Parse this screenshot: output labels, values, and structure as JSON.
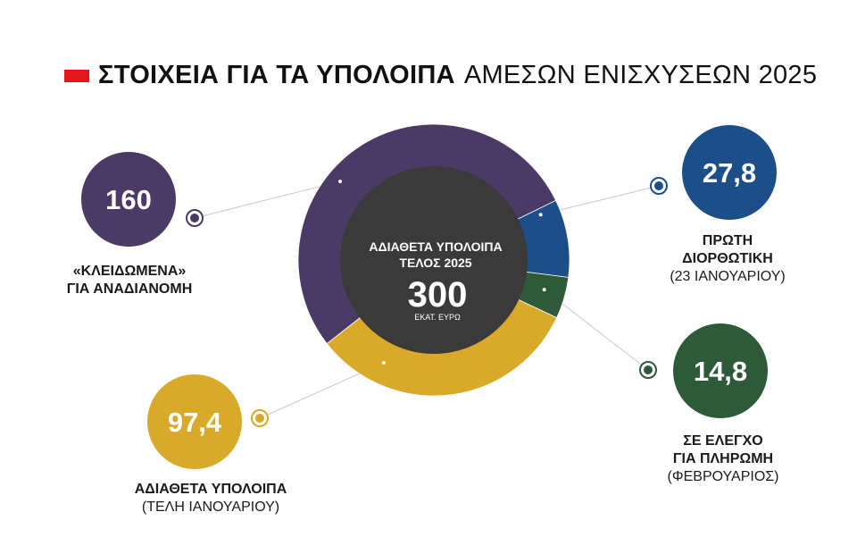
{
  "header": {
    "title_bold": "ΣΤΟΙΧΕΙΑ ΓΙΑ ΤΑ ΥΠΟΛΟΙΠΑ",
    "title_light": "ΑΜΕΣΩΝ ΕΝΙΣΧΥΣΕΩΝ 2025",
    "accent_color": "#e3161b"
  },
  "chart_data": {
    "type": "pie",
    "title": "ΣΤΟΙΧΕΙΑ ΓΙΑ ΤΑ ΥΠΟΛΟΙΠΑ ΑΜΕΣΩΝ ΕΝΙΣΧΥΣΕΩΝ 2025",
    "center": {
      "line1": "ΑΔΙΑΘΕΤΑ ΥΠΟΛΟΙΠΑ",
      "line2": "ΤΕΛΟΣ 2025",
      "total": "300",
      "unit": "ΕΚΑΤ. ΕΥΡΩ",
      "color": "#3a3a3a"
    },
    "slices": [
      {
        "value": 160,
        "display": "160",
        "label_bold": "«ΚΛΕΙΔΩΜΕΝΑ»",
        "label_bold2": "ΓΙΑ ΑΝΑΔΙΑΝΟΜΗ",
        "label_note": "",
        "color": "#4a3a66"
      },
      {
        "value": 27.8,
        "display": "27,8",
        "label_bold": "ΠΡΩΤΗ",
        "label_bold2": "ΔΙΟΡΘΩΤΙΚΗ",
        "label_note": "(23 ΙΑΝΟΥΑΡΙΟΥ)",
        "color": "#1c4f8a"
      },
      {
        "value": 14.8,
        "display": "14,8",
        "label_bold": "ΣΕ ΕΛΕΓΧΟ",
        "label_bold2": "ΓΙΑ ΠΛΗΡΩΜΗ",
        "label_note": "(ΦΕΒΡΟΥΑΡΙΟΣ)",
        "color": "#2f5a3a"
      },
      {
        "value": 97.4,
        "display": "97,4",
        "label_bold": "ΑΔΙΑΘΕΤΑ ΥΠΟΛΟΙΠΑ",
        "label_bold2": "",
        "label_note": "(ΤΕΛΗ ΙΑΝΟΥΑΡΙΟΥ)",
        "color": "#d9a92a"
      }
    ]
  }
}
